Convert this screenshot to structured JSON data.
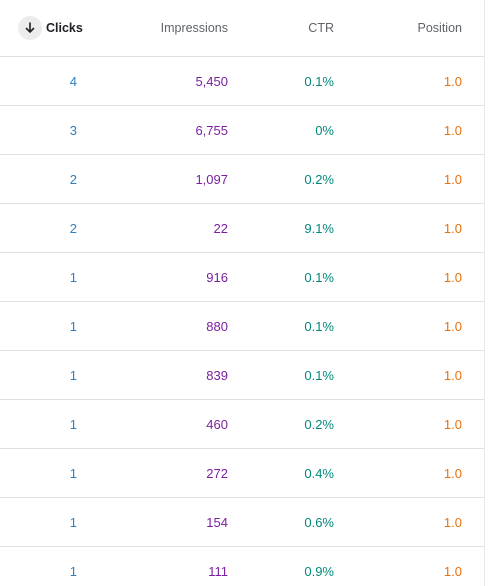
{
  "columns": {
    "clicks": "Clicks",
    "impressions": "Impressions",
    "ctr": "CTR",
    "position": "Position"
  },
  "sort": {
    "column": "clicks",
    "direction": "descending",
    "icon": "arrow-down-icon"
  },
  "colors": {
    "clicks": "#2f7fc1",
    "impressions": "#7b1fa2",
    "ctr": "#00897b",
    "position": "#e8710a"
  },
  "rows": [
    {
      "clicks": "4",
      "impressions": "5,450",
      "ctr": "0.1%",
      "position": "1.0"
    },
    {
      "clicks": "3",
      "impressions": "6,755",
      "ctr": "0%",
      "position": "1.0"
    },
    {
      "clicks": "2",
      "impressions": "1,097",
      "ctr": "0.2%",
      "position": "1.0"
    },
    {
      "clicks": "2",
      "impressions": "22",
      "ctr": "9.1%",
      "position": "1.0"
    },
    {
      "clicks": "1",
      "impressions": "916",
      "ctr": "0.1%",
      "position": "1.0"
    },
    {
      "clicks": "1",
      "impressions": "880",
      "ctr": "0.1%",
      "position": "1.0"
    },
    {
      "clicks": "1",
      "impressions": "839",
      "ctr": "0.1%",
      "position": "1.0"
    },
    {
      "clicks": "1",
      "impressions": "460",
      "ctr": "0.2%",
      "position": "1.0"
    },
    {
      "clicks": "1",
      "impressions": "272",
      "ctr": "0.4%",
      "position": "1.0"
    },
    {
      "clicks": "1",
      "impressions": "154",
      "ctr": "0.6%",
      "position": "1.0"
    },
    {
      "clicks": "1",
      "impressions": "111",
      "ctr": "0.9%",
      "position": "1.0"
    }
  ]
}
